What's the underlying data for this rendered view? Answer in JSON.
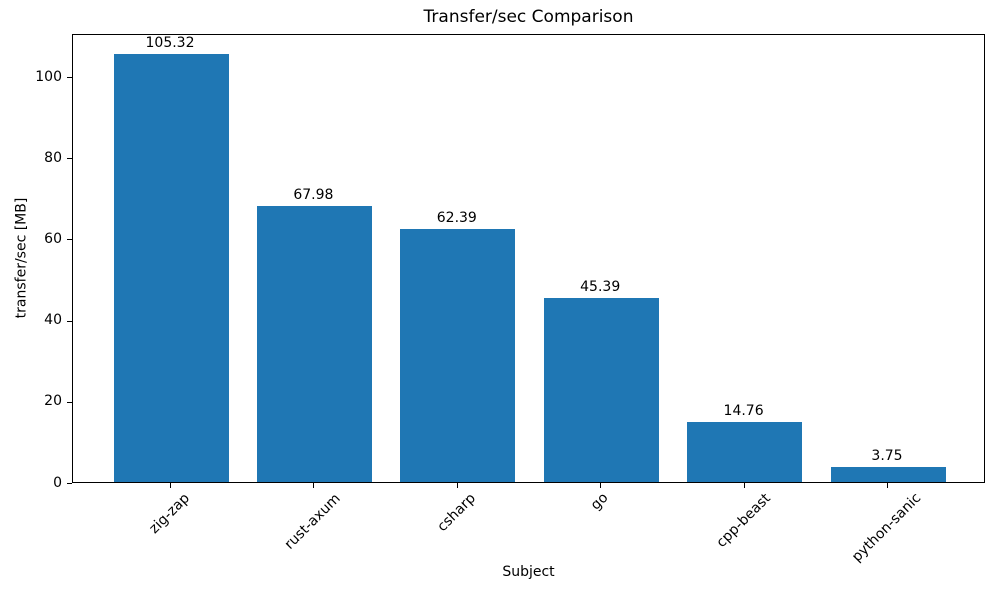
{
  "chart_data": {
    "type": "bar",
    "title": "Transfer/sec Comparison",
    "xlabel": "Subject",
    "ylabel": "transfer/sec [MB]",
    "categories": [
      "zig-zap",
      "rust-axum",
      "csharp",
      "go",
      "cpp-beast",
      "python-sanic"
    ],
    "values": [
      105.32,
      67.98,
      62.39,
      45.39,
      14.76,
      3.75
    ],
    "value_labels": [
      "105.32",
      "67.98",
      "62.39",
      "45.39",
      "14.76",
      "3.75"
    ],
    "yticks": [
      0,
      20,
      40,
      60,
      80,
      100
    ],
    "ytick_labels": [
      "0",
      "20",
      "40",
      "60",
      "80",
      "100"
    ],
    "ylim": [
      0,
      110.6
    ],
    "bar_color": "#1f77b4",
    "text_color": "#000000",
    "xtick_rotation_deg": 45,
    "grid": false,
    "legend": "none"
  }
}
